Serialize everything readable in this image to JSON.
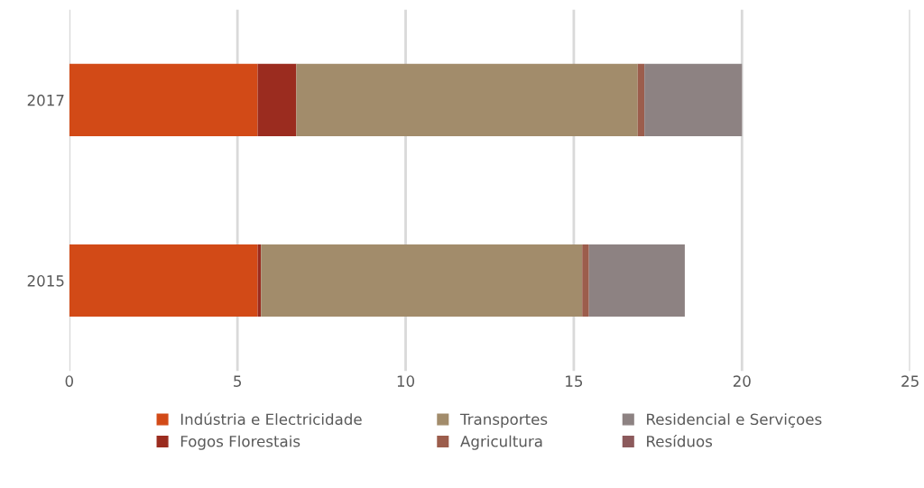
{
  "chart_data": {
    "type": "bar",
    "orientation": "horizontal",
    "stacked": true,
    "categories": [
      "2017",
      "2015"
    ],
    "series": [
      {
        "name": "Indústria e Electricidade",
        "color": "#d24a17",
        "values": [
          5.6,
          5.6
        ]
      },
      {
        "name": "Fogos Florestais",
        "color": "#9b2c1f",
        "values": [
          1.15,
          0.1
        ]
      },
      {
        "name": "Transportes",
        "color": "#a28c6b",
        "values": [
          10.15,
          9.55
        ]
      },
      {
        "name": "Agricultura",
        "color": "#9c5d4c",
        "values": [
          0.2,
          0.2
        ]
      },
      {
        "name": "Residencial e Serviçoes",
        "color": "#8d8282",
        "values": [
          2.9,
          2.85
        ]
      },
      {
        "name": "Resíduos",
        "color": "#8c5a5c",
        "values": [
          0,
          0
        ]
      }
    ],
    "xlim": [
      0,
      25
    ],
    "xticks": [
      0,
      5,
      10,
      15,
      20,
      25
    ],
    "grid": "x",
    "legend": "bottom"
  }
}
